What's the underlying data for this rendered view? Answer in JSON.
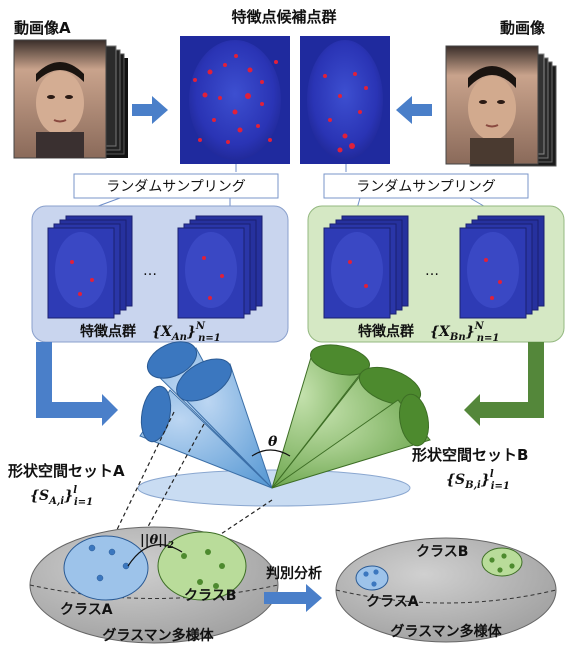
{
  "top": {
    "video_a_label": "動画像A",
    "candidates_label": "特徴点候補点群",
    "video_b_label": "動画像"
  },
  "sampling": {
    "left_label": "ランダムサンプリング",
    "right_label": "ランダムサンプリング"
  },
  "groups": {
    "ellipsis": "…",
    "left_label": "特徴点群",
    "left_math_set": "{X",
    "left_math_sub": "An",
    "left_math_close": "}",
    "left_math_sup": "N",
    "left_math_lower": "n=1",
    "right_label": "特徴点群",
    "right_math_set": "{X",
    "right_math_sub": "Bn",
    "right_math_close": "}",
    "right_math_sup": "N",
    "right_math_lower": "n=1"
  },
  "shape_space": {
    "theta": "θ",
    "set_a_label": "形状空間セットA",
    "set_a_math": "{S",
    "set_a_sub": "A,i",
    "set_a_close": "}",
    "set_a_sup": "l",
    "set_a_lower": "i=1",
    "set_b_label": "形状空間セットB",
    "set_b_math": "{S",
    "set_b_sub": "B,i",
    "set_b_close": "}",
    "set_b_sup": "l",
    "set_b_lower": "i=1"
  },
  "manifold": {
    "norm_label": "||θ||",
    "norm_sub": "2",
    "class_a": "クラスA",
    "class_b": "クラスB",
    "manifold_label": "グラスマン多様体",
    "arrow_label": "判別分析"
  },
  "colors": {
    "blue_panel": "#c9d5ee",
    "green_panel": "#d5e8c4",
    "cone_blue": "#5b9bd5",
    "cone_green": "#5c9b3c",
    "arrow_blue": "#4a7fc9",
    "arrow_green": "#54873a",
    "manifold_gray": "#a6a6a6"
  }
}
